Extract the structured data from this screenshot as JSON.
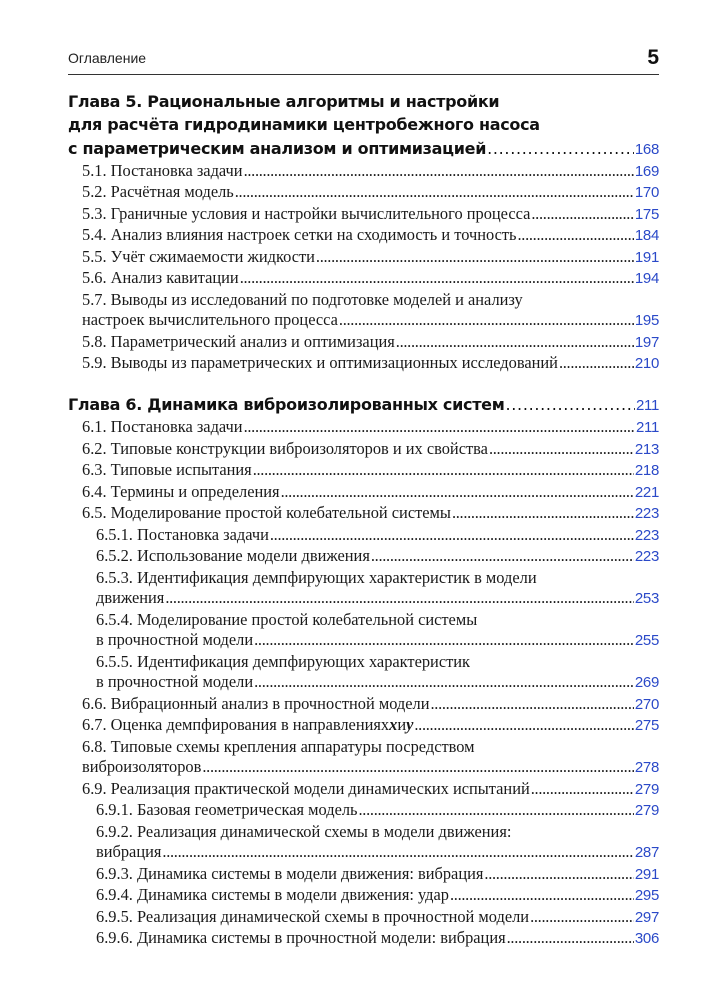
{
  "header": {
    "section": "Оглавление",
    "page_number": "5"
  },
  "colors": {
    "page_link": "#2a49c8",
    "text": "#1a1a1a"
  },
  "chapters": [
    {
      "lines": [
        "Глава 5. Рациональные алгоритмы и настройки",
        "для расчёта гидродинамики центробежного насоса"
      ],
      "title": "с параметрическим анализом и оптимизацией",
      "page": "168",
      "entries": [
        {
          "level": 1,
          "text": "5.1. Постановка задачи",
          "page": "169"
        },
        {
          "level": 1,
          "text": "5.2. Расчётная модель",
          "page": "170"
        },
        {
          "level": 1,
          "text": "5.3. Граничные условия и настройки вычислительного процесса",
          "page": "175"
        },
        {
          "level": 1,
          "text": "5.4. Анализ влияния настроек сетки на сходимость и точность",
          "page": "184"
        },
        {
          "level": 1,
          "text": "5.5. Учёт сжимаемости жидкости",
          "page": "191"
        },
        {
          "level": 1,
          "text": "5.6. Анализ кавитации",
          "page": "194"
        },
        {
          "level": 1,
          "lines": [
            "5.7. Выводы из исследований по подготовке моделей и анализу"
          ],
          "text": "настроек вычислительного процесса",
          "page": "195"
        },
        {
          "level": 1,
          "text": "5.8. Параметрический анализ и оптимизация",
          "page": "197"
        },
        {
          "level": 1,
          "text": "5.9. Выводы из параметрических и оптимизационных исследований",
          "page": "210"
        }
      ]
    },
    {
      "lines": [],
      "title": "Глава 6. Динамика виброизолированных систем",
      "page": "211",
      "entries": [
        {
          "level": 1,
          "text": "6.1. Постановка задачи",
          "page": "211"
        },
        {
          "level": 1,
          "text": "6.2. Типовые конструкции виброизоляторов и их свойства",
          "page": "213"
        },
        {
          "level": 1,
          "text": "6.3. Типовые испытания",
          "page": "218"
        },
        {
          "level": 1,
          "text": "6.4. Термины и определения",
          "page": "221"
        },
        {
          "level": 1,
          "text": "6.5. Моделирование простой колебательной системы",
          "page": "223"
        },
        {
          "level": 2,
          "text": "6.5.1. Постановка задачи",
          "page": "223"
        },
        {
          "level": 2,
          "text": "6.5.2. Использование модели движения",
          "page": "223"
        },
        {
          "level": 2,
          "lines": [
            "6.5.3. Идентификация демпфирующих характеристик в модели"
          ],
          "text": "движения",
          "page": "253"
        },
        {
          "level": 2,
          "lines": [
            "6.5.4. Моделирование простой колебательной системы"
          ],
          "text": "в прочностной модели",
          "page": "255"
        },
        {
          "level": 2,
          "lines": [
            "6.5.5. Идентификация демпфирующих характеристик"
          ],
          "text": "в прочностной модели",
          "page": "269"
        },
        {
          "level": 1,
          "text": "6.6. Вибрационный анализ в прочностной модели",
          "page": "270"
        },
        {
          "level": 1,
          "text": "6.7. Оценка демпфирования в направлениях ",
          "var_x": "x",
          "conj": " и ",
          "var_y": "y",
          "page": "275"
        },
        {
          "level": 1,
          "lines": [
            "6.8. Типовые схемы крепления аппаратуры посредством"
          ],
          "text": "виброизоляторов",
          "page": "278"
        },
        {
          "level": 1,
          "text": "6.9. Реализация практической модели динамических испытаний",
          "page": "279"
        },
        {
          "level": 2,
          "text": "6.9.1. Базовая геометрическая модель",
          "page": "279"
        },
        {
          "level": 2,
          "lines": [
            "6.9.2. Реализация динамической схемы в модели движения:"
          ],
          "text": "вибрация",
          "page": "287"
        },
        {
          "level": 2,
          "text": "6.9.3. Динамика системы в модели движения: вибрация",
          "page": "291"
        },
        {
          "level": 2,
          "text": "6.9.4. Динамика системы в модели движения: удар",
          "page": "295"
        },
        {
          "level": 2,
          "text": "6.9.5. Реализация динамической схемы в прочностной модели",
          "page": "297"
        },
        {
          "level": 2,
          "text": "6.9.6. Динамика системы в прочностной модели: вибрация",
          "page": "306"
        }
      ]
    }
  ]
}
